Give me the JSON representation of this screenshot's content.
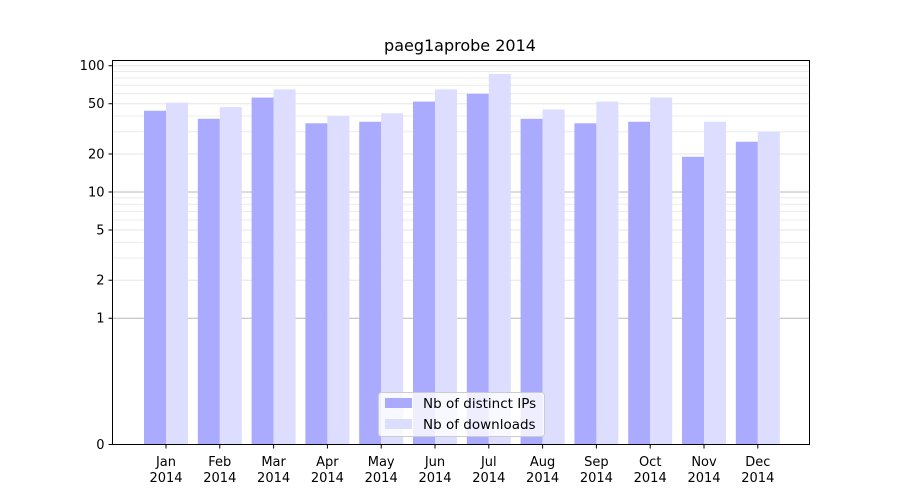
{
  "chart_data": {
    "type": "bar",
    "title": "paeg1aprobe 2014",
    "xlabel": "",
    "ylabel": "",
    "y_scale": "symlog",
    "ylim": [
      0,
      110
    ],
    "y_ticks": [
      0,
      1,
      2,
      5,
      10,
      20,
      50,
      100
    ],
    "categories": [
      [
        "Jan",
        "2014"
      ],
      [
        "Feb",
        "2014"
      ],
      [
        "Mar",
        "2014"
      ],
      [
        "Apr",
        "2014"
      ],
      [
        "May",
        "2014"
      ],
      [
        "Jun",
        "2014"
      ],
      [
        "Jul",
        "2014"
      ],
      [
        "Aug",
        "2014"
      ],
      [
        "Sep",
        "2014"
      ],
      [
        "Oct",
        "2014"
      ],
      [
        "Nov",
        "2014"
      ],
      [
        "Dec",
        "2014"
      ]
    ],
    "series": [
      {
        "name": "Nb of distinct IPs",
        "color": "#aaaaff",
        "values": [
          44,
          38,
          56,
          35,
          36,
          52,
          60,
          38,
          35,
          36,
          19,
          25
        ]
      },
      {
        "name": "Nb of downloads",
        "color": "#ddddff",
        "values": [
          51,
          47,
          65,
          40,
          42,
          65,
          86,
          45,
          52,
          56,
          36,
          30
        ]
      }
    ],
    "legend_position": "bottom-center",
    "grid": true
  }
}
